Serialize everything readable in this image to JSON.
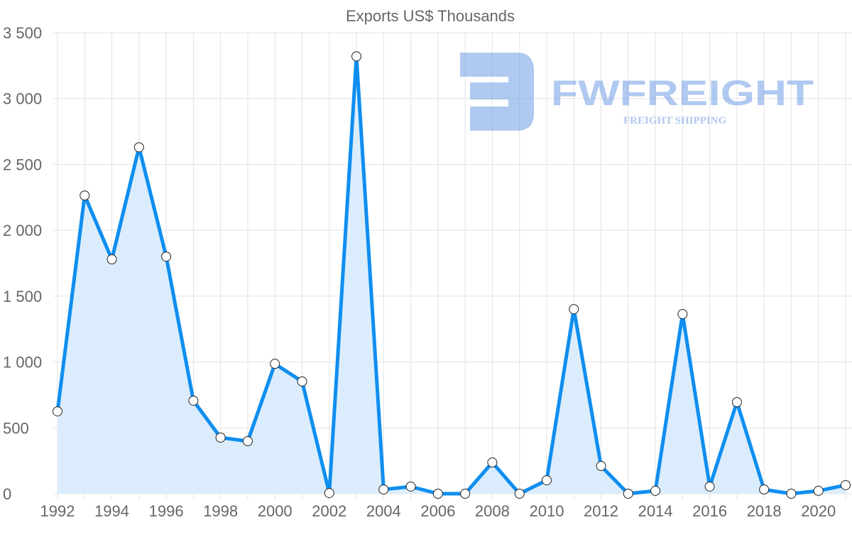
{
  "chart_data": {
    "type": "line",
    "title": "Exports US$ Thousands",
    "xlabel": "",
    "ylabel": "",
    "x": [
      1992,
      1993,
      1994,
      1995,
      1996,
      1997,
      1998,
      1999,
      2000,
      2001,
      2002,
      2003,
      2004,
      2005,
      2006,
      2007,
      2008,
      2009,
      2010,
      2011,
      2012,
      2013,
      2014,
      2015,
      2016,
      2017,
      2018,
      2019,
      2020,
      2021
    ],
    "series": [
      {
        "name": "Exports US$ Thousands",
        "values": [
          625,
          2264,
          1779,
          2630,
          1800,
          706,
          426,
          399,
          986,
          852,
          5,
          3320,
          32,
          54,
          0,
          0,
          237,
          0,
          102,
          1401,
          210,
          0,
          22,
          1364,
          54,
          695,
          32,
          0,
          22,
          65
        ],
        "color": "#0f8ef0",
        "fill": "#dbedfc"
      }
    ],
    "xticks": [
      "1992",
      "1994",
      "1996",
      "1998",
      "2000",
      "2002",
      "2004",
      "2006",
      "2008",
      "2010",
      "2012",
      "2014",
      "2016",
      "2018",
      "2020"
    ],
    "yticks": [
      "0",
      "500",
      "1 000",
      "1 500",
      "2 000",
      "2 500",
      "3 000",
      "3 500"
    ],
    "ylim": [
      0,
      3500
    ],
    "xlim": [
      1992,
      2021
    ],
    "grid": true,
    "legend": "none"
  },
  "logo": {
    "name": "FWFREIGHT",
    "tagline": "FREIGHT SHIPPING"
  }
}
